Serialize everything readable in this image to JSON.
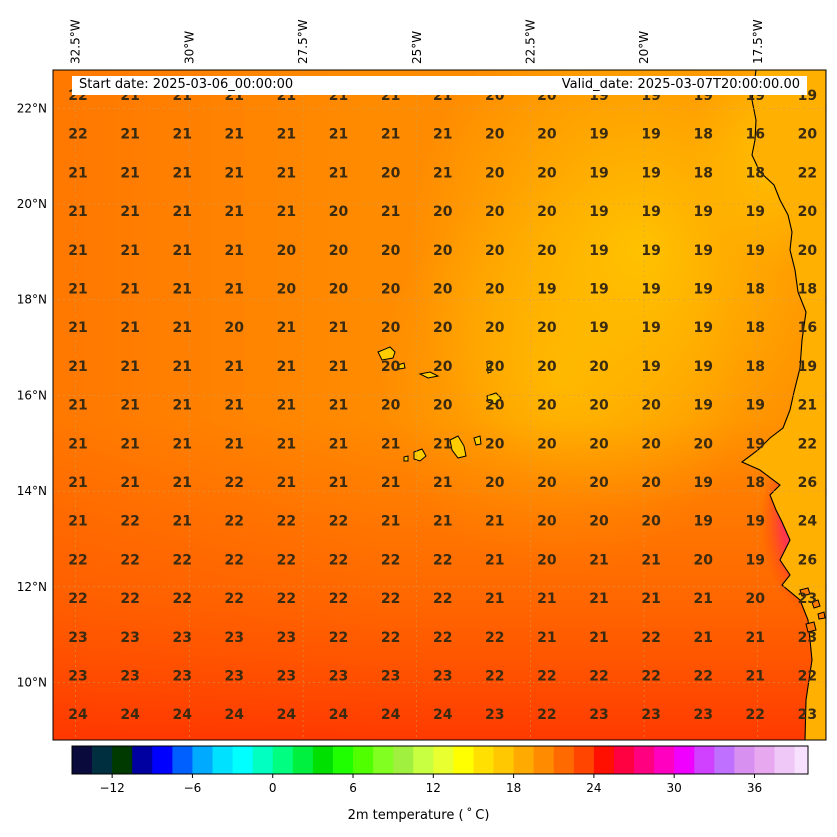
{
  "header": {
    "start_date": "Start date: 2025-03-06_00:00:00",
    "valid_date": "Valid_date: 2025-03-07T20:00:00.00"
  },
  "map": {
    "lon_range": [
      -33,
      -16
    ],
    "lat_range": [
      8.8,
      22.8
    ],
    "lon_ticks": [
      "32.5°W",
      "30°W",
      "27.5°W",
      "25°W",
      "22.5°W",
      "20°W",
      "17.5°W"
    ],
    "lon_tick_values": [
      -32.5,
      -30,
      -27.5,
      -25,
      -22.5,
      -20,
      -17.5
    ],
    "lat_ticks": [
      "22°N",
      "20°N",
      "18°N",
      "16°N",
      "14°N",
      "12°N",
      "10°N"
    ],
    "lat_tick_values": [
      22,
      20,
      18,
      16,
      14,
      12,
      10
    ],
    "colors": {
      "base": "#ff8c00",
      "cooler": "#ffc400",
      "warmer": "#ff4500",
      "coast_hot": "#e0209a",
      "coastline": "#000000"
    }
  },
  "temperature_grid": {
    "rows": [
      [
        "22",
        "21",
        "21",
        "21",
        "21",
        "21",
        "21",
        "21",
        "20",
        "20",
        "19",
        "19",
        "19",
        "19",
        "19"
      ],
      [
        "22",
        "21",
        "21",
        "21",
        "21",
        "21",
        "21",
        "21",
        "20",
        "20",
        "19",
        "19",
        "18",
        "16",
        "20"
      ],
      [
        "21",
        "21",
        "21",
        "21",
        "21",
        "21",
        "20",
        "21",
        "20",
        "20",
        "19",
        "19",
        "18",
        "18",
        "22"
      ],
      [
        "21",
        "21",
        "21",
        "21",
        "21",
        "20",
        "21",
        "20",
        "20",
        "20",
        "19",
        "19",
        "19",
        "19",
        "20"
      ],
      [
        "21",
        "21",
        "21",
        "21",
        "20",
        "20",
        "20",
        "20",
        "20",
        "20",
        "19",
        "19",
        "19",
        "19",
        "20"
      ],
      [
        "21",
        "21",
        "21",
        "21",
        "20",
        "20",
        "20",
        "20",
        "20",
        "19",
        "19",
        "19",
        "19",
        "18",
        "18"
      ],
      [
        "21",
        "21",
        "21",
        "20",
        "21",
        "21",
        "20",
        "20",
        "20",
        "20",
        "19",
        "19",
        "19",
        "18",
        "16"
      ],
      [
        "21",
        "21",
        "21",
        "21",
        "21",
        "21",
        "20",
        "20",
        "20",
        "20",
        "20",
        "19",
        "19",
        "18",
        "19"
      ],
      [
        "21",
        "21",
        "21",
        "21",
        "21",
        "21",
        "20",
        "20",
        "20",
        "20",
        "20",
        "20",
        "19",
        "19",
        "21"
      ],
      [
        "21",
        "21",
        "21",
        "21",
        "21",
        "21",
        "21",
        "21",
        "20",
        "20",
        "20",
        "20",
        "20",
        "19",
        "22"
      ],
      [
        "21",
        "21",
        "21",
        "22",
        "21",
        "21",
        "21",
        "21",
        "20",
        "20",
        "20",
        "20",
        "19",
        "18",
        "26"
      ],
      [
        "21",
        "22",
        "21",
        "22",
        "22",
        "22",
        "21",
        "21",
        "21",
        "20",
        "20",
        "20",
        "19",
        "19",
        "24"
      ],
      [
        "22",
        "22",
        "22",
        "22",
        "22",
        "22",
        "22",
        "22",
        "21",
        "20",
        "21",
        "21",
        "20",
        "19",
        "26"
      ],
      [
        "22",
        "22",
        "22",
        "22",
        "22",
        "22",
        "22",
        "22",
        "21",
        "21",
        "21",
        "21",
        "21",
        "20",
        "23"
      ],
      [
        "23",
        "23",
        "23",
        "23",
        "23",
        "22",
        "22",
        "22",
        "22",
        "21",
        "21",
        "22",
        "21",
        "21",
        "23"
      ],
      [
        "23",
        "23",
        "23",
        "23",
        "23",
        "23",
        "23",
        "23",
        "22",
        "22",
        "22",
        "22",
        "22",
        "21",
        "22"
      ],
      [
        "24",
        "24",
        "24",
        "24",
        "24",
        "24",
        "24",
        "24",
        "23",
        "22",
        "23",
        "23",
        "23",
        "22",
        "23"
      ]
    ]
  },
  "colorbar": {
    "label": "2m temperature ($^\\circ$C)",
    "display_label": "2m temperature ( ˚ C)",
    "ticks": [
      "−12",
      "−6",
      "0",
      "6",
      "12",
      "18",
      "24",
      "30",
      "36"
    ],
    "tick_values": [
      -12,
      -6,
      0,
      6,
      12,
      18,
      24,
      30,
      36
    ],
    "range": [
      -15,
      40
    ]
  }
}
